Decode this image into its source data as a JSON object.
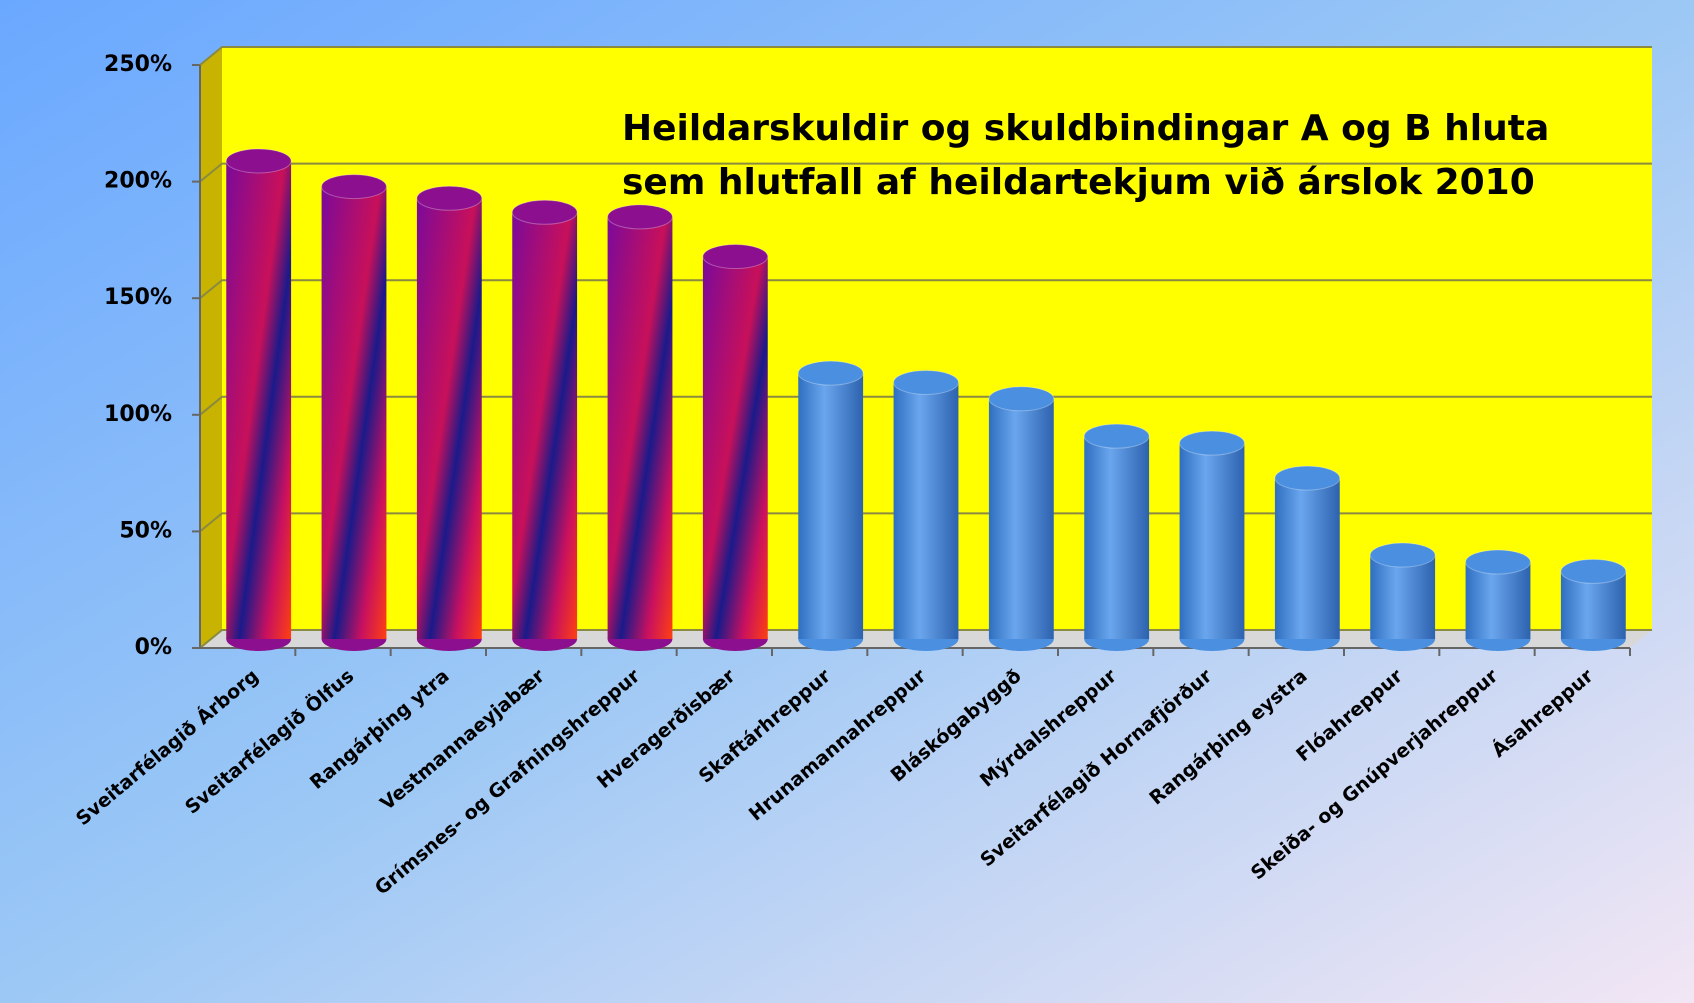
{
  "chart_data": {
    "type": "bar",
    "title": [
      "Heildarskuldir og skuldbindingar A og B hluta",
      "sem hlutfall af heildartekjum við árslok 2010"
    ],
    "categories": [
      "Sveitarfélagið Árborg",
      "Sveitarfélagið Ölfus",
      "Rangárþing ytra",
      "Vestmannaeyjabær",
      "Grímsnes- og Grafningshreppur",
      "Hveragerðisbær",
      "Skaftárhreppur",
      "Hrunamannahreppur",
      "Bláskógabyggð",
      "Mýrdalshreppur",
      "Sveitarfélagið Hornafjörður",
      "Rangárþing eystra",
      "Flóahreppur",
      "Skeiða- og Gnúpverjahreppur",
      "Ásahreppur"
    ],
    "values": [
      205,
      194,
      189,
      183,
      181,
      164,
      114,
      110,
      103,
      87,
      84,
      69,
      36,
      33,
      29
    ],
    "colors": [
      "#8b0f8f",
      "#8b0f8f",
      "#8b0f8f",
      "#8b0f8f",
      "#8b0f8f",
      "#8b0f8f",
      "#4a8fe0",
      "#4a8fe0",
      "#4a8fe0",
      "#4a8fe0",
      "#4a8fe0",
      "#4a8fe0",
      "#4a8fe0",
      "#4a8fe0",
      "#4a8fe0"
    ],
    "ylim": [
      0,
      250
    ],
    "yticks": [
      {
        "value": 0,
        "label": "0%"
      },
      {
        "value": 50,
        "label": "50%"
      },
      {
        "value": 100,
        "label": "100%"
      },
      {
        "value": 150,
        "label": "150%"
      },
      {
        "value": 200,
        "label": "200%"
      },
      {
        "value": 250,
        "label": "250%"
      }
    ],
    "grid": true
  }
}
